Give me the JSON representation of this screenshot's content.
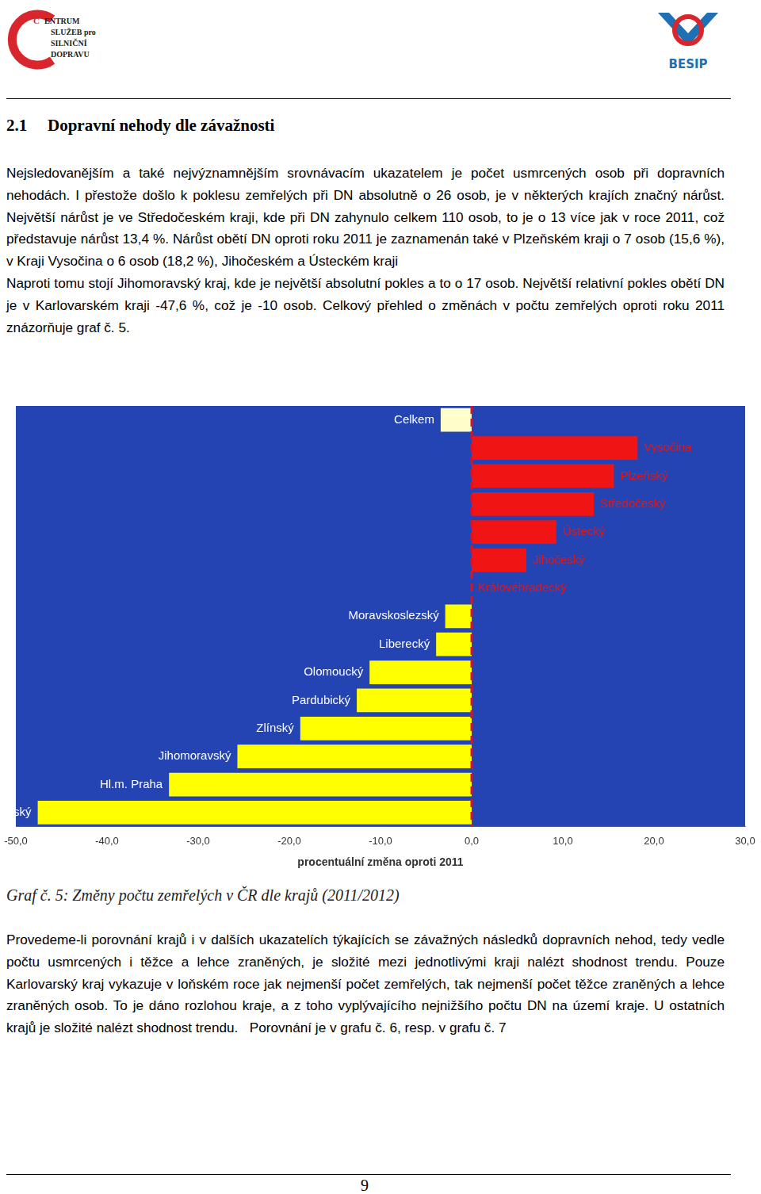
{
  "header": {
    "logo_left": {
      "initial": "C",
      "lines": [
        "ENTRUM",
        "SLUŽEB pro",
        "SILNIČNÍ",
        "DOPRAVU"
      ]
    },
    "logo_right": "BESIP"
  },
  "heading": {
    "number": "2.1",
    "title": "Dopravní nehody dle závažnosti"
  },
  "paragraph_1": [
    "Nejsledovanějším a také nejvýznamnějším srovnávacím ukazatelem je počet usmrcených osob při dopravních nehodách. I přestože došlo k poklesu zemřelých při DN absolutně o 26 osob, je v některých krajích značný nárůst. Největší nárůst je ve Středočeském kraji, kde při DN zahynulo celkem 110 osob, to je o 13 více jak v roce 2011, což představuje nárůst 13,4 %. Nárůst obětí DN oproti roku 2011 je zaznamenán také v Plzeňském kraji o 7 osob (15,6 %), v Kraji Vysočina o 6 osob (18,2 %), Jihočeském a Ústeckém kraji",
    "Naproti tomu stojí Jihomoravský kraj, kde je největší absolutní pokles a to o 17 osob. Největší relativní pokles obětí DN je v Karlovarském kraji -47,6 %, což je -10 osob. Celkový přehled o změnách v počtu zemřelých oproti roku 2011 znázorňuje graf č. 5."
  ],
  "chart_data": {
    "type": "bar",
    "orientation": "horizontal",
    "categories": [
      "Celkem",
      "Vysočina",
      "Plzeňský",
      "Středočeský",
      "Ústecký",
      "Jihočeský",
      "Královéhradecký",
      "Moravskoslezský",
      "Liberecký",
      "Olomoucký",
      "Pardubický",
      "Zlínský",
      "Jihomoravský",
      "Hl.m. Praha",
      "Karlovarský"
    ],
    "values": [
      -3.4,
      18.2,
      15.6,
      13.4,
      9.3,
      6.0,
      0,
      -2.9,
      -3.9,
      -11.2,
      -12.6,
      -18.8,
      -25.7,
      -33.2,
      -47.6
    ],
    "colors": [
      "#ffffcc",
      "#f01414",
      "#f01414",
      "#f01414",
      "#f01414",
      "#f01414",
      "#f01414",
      "#ffff00",
      "#ffff00",
      "#ffff00",
      "#ffff00",
      "#ffff00",
      "#ffff00",
      "#ffff00",
      "#ffff00"
    ],
    "xlabel": "procentuální změna oproti 2011",
    "xlim": [
      -50,
      30
    ],
    "xticks": [
      {
        "value": -50,
        "label": "-50,0"
      },
      {
        "value": -40,
        "label": "-40,0"
      },
      {
        "value": -30,
        "label": "-30,0"
      },
      {
        "value": -20,
        "label": "-20,0"
      },
      {
        "value": -10,
        "label": "-10,0"
      },
      {
        "value": 0,
        "label": "0,0"
      },
      {
        "value": 10,
        "label": "10,0"
      },
      {
        "value": 20,
        "label": "20,0"
      },
      {
        "value": 30,
        "label": "30,0"
      }
    ],
    "grid": false,
    "tick_labels": "x",
    "reference_line": 0
  },
  "caption": "Graf č. 5: Změny počtu zemřelých v ČR dle krajů (2011/2012)",
  "paragraph_2": "Provedeme-li porovnání krajů i v dalších ukazatelích týkajících se závažných následků dopravních nehod, tedy vedle počtu usmrcených i těžce a lehce zraněných, je složité mezi jednotlivými kraji nalézt shodnost trendu. Pouze Karlovarský kraj vykazuje v loňském roce jak nejmenší počet zemřelých, tak nejmenší počet těžce zraněných a lehce zraněných osob. To je dáno rozlohou kraje, a z toho vyplývajícího nejnižšího počtu DN na území kraje. U ostatních krajů je složité nalézt shodnost trendu.   Porovnání je v grafu č. 6, resp. v grafu č. 7",
  "page_number": 9
}
